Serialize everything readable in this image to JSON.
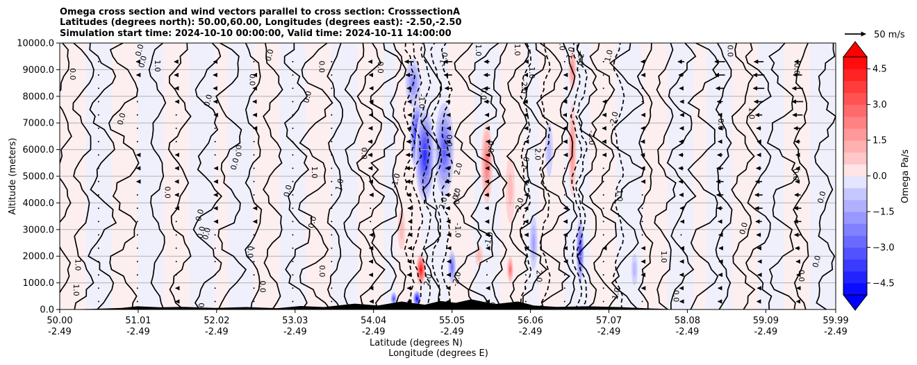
{
  "chart_data": {
    "type": "heatmap",
    "title": [
      "Omega cross section and wind vectors parallel to cross section: CrosssectionA",
      "Latitudes (degrees north): 50.00,60.00, Longitudes (degrees east): -2.50,-2.50",
      "Simulation start time: 2024-10-10 00:00:00, Valid time: 2024-10-11 14:00:00"
    ],
    "ylabel": "Altitude (meters)",
    "xlabel": [
      "Latitude (degrees N)",
      "Longitude (degrees E)"
    ],
    "ylim": [
      0,
      10000
    ],
    "y_ticks": [
      0,
      1000,
      2000,
      3000,
      4000,
      5000,
      6000,
      7000,
      8000,
      9000,
      10000
    ],
    "y_tick_labels": [
      "0.0",
      "1000.0",
      "2000.0",
      "3000.0",
      "4000.0",
      "5000.0",
      "6000.0",
      "7000.0",
      "8000.0",
      "9000.0",
      "10000.0"
    ],
    "xlim": [
      50.0,
      59.99
    ],
    "x_ticks": [
      {
        "lat": "50.00",
        "lon": "-2.49"
      },
      {
        "lat": "51.01",
        "lon": "-2.49"
      },
      {
        "lat": "52.02",
        "lon": "-2.49"
      },
      {
        "lat": "53.03",
        "lon": "-2.49"
      },
      {
        "lat": "54.04",
        "lon": "-2.49"
      },
      {
        "lat": "55.05",
        "lon": "-2.49"
      },
      {
        "lat": "56.06",
        "lon": "-2.49"
      },
      {
        "lat": "57.07",
        "lon": "-2.49"
      },
      {
        "lat": "58.08",
        "lon": "-2.49"
      },
      {
        "lat": "59.09",
        "lon": "-2.49"
      },
      {
        "lat": "59.99",
        "lon": "-2.49"
      }
    ],
    "grid": "horizontal",
    "colorbar": {
      "label": "Omega Pa/s",
      "range": [
        -5.0,
        5.0
      ],
      "ticks": [
        4.5,
        3.0,
        1.5,
        0.0,
        -1.5,
        -3.0,
        -4.5
      ],
      "tick_labels": [
        "4.5",
        "3.0",
        "1.5",
        "0.0",
        "−1.5",
        "−3.0",
        "−4.5"
      ],
      "extend": "both"
    },
    "quiver_key": {
      "value": 50,
      "label": "50 m/s"
    },
    "omega_field": {
      "units": "Pa/s",
      "features": [
        {
          "lat": 54.6,
          "alt": 6500,
          "value": -4.8,
          "width_deg": 0.18,
          "height_m": 2500
        },
        {
          "lat": 54.7,
          "alt": 5800,
          "value": -4.2,
          "width_deg": 0.25,
          "height_m": 3500
        },
        {
          "lat": 54.95,
          "alt": 6000,
          "value": -3.0,
          "width_deg": 0.25,
          "height_m": 3500
        },
        {
          "lat": 54.55,
          "alt": 8500,
          "value": -2.4,
          "width_deg": 0.2,
          "height_m": 1800
        },
        {
          "lat": 55.5,
          "alt": 5500,
          "value": 2.6,
          "width_deg": 0.15,
          "height_m": 3000
        },
        {
          "lat": 55.8,
          "alt": 4500,
          "value": 1.2,
          "width_deg": 0.12,
          "height_m": 2500
        },
        {
          "lat": 56.6,
          "alt": 6000,
          "value": 2.2,
          "width_deg": 0.1,
          "height_m": 3500
        },
        {
          "lat": 56.6,
          "alt": 9000,
          "value": 2.4,
          "width_deg": 0.1,
          "height_m": 1500
        },
        {
          "lat": 54.65,
          "alt": 1500,
          "value": 4.5,
          "width_deg": 0.12,
          "height_m": 1200
        },
        {
          "lat": 54.6,
          "alt": 400,
          "value": -4.8,
          "width_deg": 0.1,
          "height_m": 600
        },
        {
          "lat": 54.3,
          "alt": 400,
          "value": -3.0,
          "width_deg": 0.08,
          "height_m": 500
        },
        {
          "lat": 55.05,
          "alt": 1600,
          "value": -2.8,
          "width_deg": 0.1,
          "height_m": 1200
        },
        {
          "lat": 55.8,
          "alt": 1500,
          "value": 2.6,
          "width_deg": 0.08,
          "height_m": 1000
        },
        {
          "lat": 56.7,
          "alt": 2200,
          "value": -3.5,
          "width_deg": 0.1,
          "height_m": 2500
        },
        {
          "lat": 55.4,
          "alt": 2000,
          "value": 1.4,
          "width_deg": 0.1,
          "height_m": 800
        },
        {
          "lat": 56.1,
          "alt": 2500,
          "value": -1.5,
          "width_deg": 0.1,
          "height_m": 2000
        },
        {
          "lat": 54.4,
          "alt": 3000,
          "value": 1.2,
          "width_deg": 0.1,
          "height_m": 1500
        },
        {
          "lat": 56.3,
          "alt": 6000,
          "value": -1.0,
          "width_deg": 0.1,
          "height_m": 2000
        },
        {
          "lat": 57.4,
          "alt": 1500,
          "value": -1.2,
          "width_deg": 0.08,
          "height_m": 1200
        }
      ]
    },
    "contour_labels": [
      "0.0",
      "1.0",
      "-1.0",
      "-2.0",
      "2.0"
    ],
    "contour_levels": [
      -2.0,
      -1.0,
      0.0,
      1.0,
      2.0
    ],
    "wind_vectors": {
      "units": "m/s",
      "columns": [
        {
          "lat": 50.5,
          "u": -3
        },
        {
          "lat": 51.0,
          "u": -5
        },
        {
          "lat": 51.5,
          "u": -8
        },
        {
          "lat": 52.0,
          "u": -8
        },
        {
          "lat": 52.5,
          "u": -5
        },
        {
          "lat": 53.0,
          "u": -3
        },
        {
          "lat": 53.5,
          "u": -2
        },
        {
          "lat": 54.0,
          "u": -12
        },
        {
          "lat": 54.5,
          "u": -20
        },
        {
          "lat": 55.0,
          "u": -18
        },
        {
          "lat": 55.5,
          "u": -14
        },
        {
          "lat": 56.0,
          "u": -10
        },
        {
          "lat": 56.5,
          "u": -8
        },
        {
          "lat": 57.0,
          "u": -6
        },
        {
          "lat": 57.5,
          "u": -8
        },
        {
          "lat": 58.0,
          "u": -14
        },
        {
          "lat": 58.5,
          "u": -22
        },
        {
          "lat": 59.0,
          "u": -25
        },
        {
          "lat": 59.5,
          "u": -26
        }
      ]
    },
    "terrain": [
      {
        "lat": 50.0,
        "alt": 0
      },
      {
        "lat": 50.4,
        "alt": 20
      },
      {
        "lat": 50.8,
        "alt": 60
      },
      {
        "lat": 51.0,
        "alt": 120
      },
      {
        "lat": 51.3,
        "alt": 80
      },
      {
        "lat": 51.6,
        "alt": 100
      },
      {
        "lat": 52.0,
        "alt": 60
      },
      {
        "lat": 52.4,
        "alt": 90
      },
      {
        "lat": 52.8,
        "alt": 50
      },
      {
        "lat": 53.1,
        "alt": 130
      },
      {
        "lat": 53.4,
        "alt": 90
      },
      {
        "lat": 53.8,
        "alt": 220
      },
      {
        "lat": 54.1,
        "alt": 150
      },
      {
        "lat": 54.4,
        "alt": 300
      },
      {
        "lat": 54.7,
        "alt": 180
      },
      {
        "lat": 54.9,
        "alt": 320
      },
      {
        "lat": 55.1,
        "alt": 250
      },
      {
        "lat": 55.3,
        "alt": 380
      },
      {
        "lat": 55.6,
        "alt": 200
      },
      {
        "lat": 55.9,
        "alt": 300
      },
      {
        "lat": 56.1,
        "alt": 150
      },
      {
        "lat": 56.4,
        "alt": 100
      },
      {
        "lat": 56.8,
        "alt": 120
      },
      {
        "lat": 57.2,
        "alt": 90
      },
      {
        "lat": 57.6,
        "alt": 40
      },
      {
        "lat": 58.0,
        "alt": 0
      },
      {
        "lat": 59.99,
        "alt": 0
      }
    ]
  }
}
